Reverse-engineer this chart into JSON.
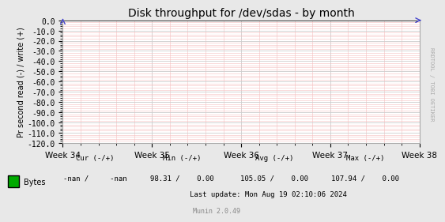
{
  "title": "Disk throughput for /dev/sdas - by month",
  "ylabel": "Pr second read (-) / write (+)",
  "ylim": [
    -120,
    0
  ],
  "yticks": [
    0,
    -10,
    -20,
    -30,
    -40,
    -50,
    -60,
    -70,
    -80,
    -90,
    -100,
    -110,
    -120
  ],
  "ytick_labels": [
    "0.0",
    "-10.0",
    "-20.0",
    "-30.0",
    "-40.0",
    "-50.0",
    "-60.0",
    "-70.0",
    "-80.0",
    "-90.0",
    "-100.0",
    "-110.0",
    "-120.0"
  ],
  "xtick_labels": [
    "Week 34",
    "Week 35",
    "Week 36",
    "Week 37",
    "Week 38"
  ],
  "fig_bg_color": "#e8e8e8",
  "plot_bg_color": "#ffffff",
  "major_grid_color": "#cccccc",
  "minor_grid_color": "#f5c0c0",
  "title_color": "#000000",
  "axis_label_color": "#000000",
  "tick_color": "#000000",
  "legend_label": "Bytes",
  "legend_color": "#00aa00",
  "right_label": "RRDTOOL / TOBI OETIKER",
  "munin_version": "Munin 2.0.49",
  "cur_label": "Cur (-/+)",
  "min_label": "Min (-/+)",
  "avg_label": "Avg (-/+)",
  "max_label": "Max (-/+)",
  "bytes_cur": "-nan /     -nan",
  "bytes_min": "98.31 /    0.00",
  "bytes_avg": "105.05 /    0.00",
  "bytes_max": "107.94 /    0.00",
  "last_update": "Last update: Mon Aug 19 02:10:06 2024",
  "fig_width": 5.47,
  "fig_height": 2.75,
  "dpi": 100
}
